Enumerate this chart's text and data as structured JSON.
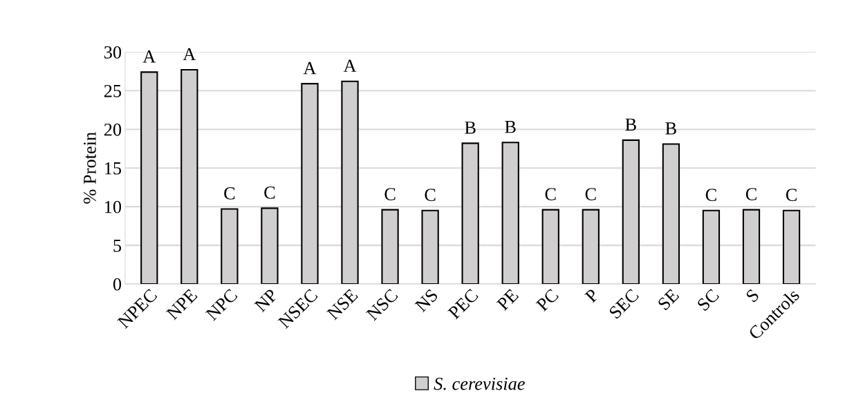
{
  "chart_data": {
    "type": "bar",
    "ylabel": "% Protein",
    "categories": [
      "NPEC",
      "NPE",
      "NPC",
      "NP",
      "NSEC",
      "NSE",
      "NSC",
      "NS",
      "PEC",
      "PE",
      "PC",
      "P",
      "SEC",
      "SE",
      "SC",
      "S",
      "Controls"
    ],
    "series": [
      {
        "name": "S. cerevisiae",
        "color": "#d0cece",
        "values": [
          27.4,
          27.7,
          9.7,
          9.8,
          25.9,
          26.2,
          9.6,
          9.5,
          18.2,
          18.3,
          9.6,
          9.6,
          18.6,
          18.1,
          9.5,
          9.6,
          9.5
        ]
      }
    ],
    "ylim": [
      0,
      30
    ],
    "yticks": [
      0,
      5,
      10,
      15,
      20,
      25,
      30
    ],
    "grid": "y",
    "legend": "bottom",
    "annotations": [
      {
        "text": "A",
        "x": "NPEC",
        "y": 27.4
      },
      {
        "text": "A",
        "x": "NPE",
        "y": 27.7
      },
      {
        "text": "C",
        "x": "NPC",
        "y": 9.7
      },
      {
        "text": "C",
        "x": "NP",
        "y": 9.8
      },
      {
        "text": "A",
        "x": "NSEC",
        "y": 25.9
      },
      {
        "text": "A",
        "x": "NSE",
        "y": 26.2
      },
      {
        "text": "C",
        "x": "NSC",
        "y": 9.6
      },
      {
        "text": "C",
        "x": "NS",
        "y": 9.5
      },
      {
        "text": "B",
        "x": "PEC",
        "y": 18.2
      },
      {
        "text": "B",
        "x": "PE",
        "y": 18.3
      },
      {
        "text": "C",
        "x": "PC",
        "y": 9.6
      },
      {
        "text": "C",
        "x": "P",
        "y": 9.6
      },
      {
        "text": "B",
        "x": "SEC",
        "y": 18.6
      },
      {
        "text": "B",
        "x": "SE",
        "y": 18.1
      },
      {
        "text": "C",
        "x": "SC",
        "y": 9.5
      },
      {
        "text": "C",
        "x": "S",
        "y": 9.6
      },
      {
        "text": "C",
        "x": "Controls",
        "y": 9.5
      }
    ]
  }
}
